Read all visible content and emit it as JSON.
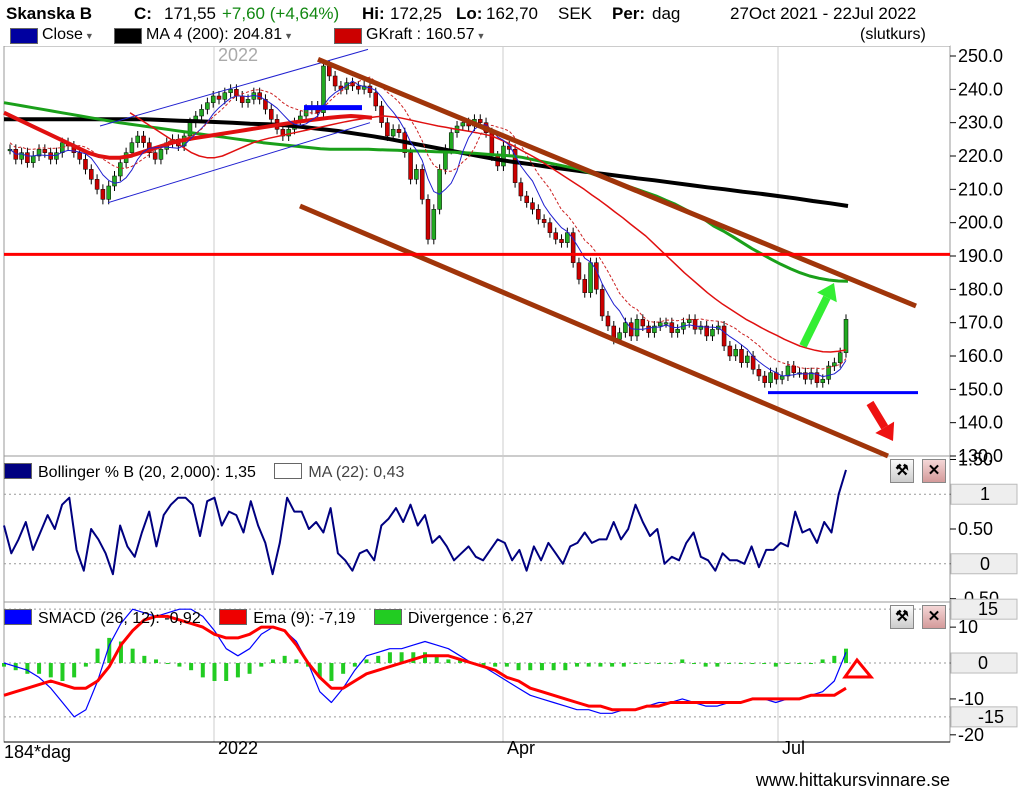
{
  "header": {
    "ticker": "Skanska B",
    "close_label": "C:",
    "close_value": "171,55",
    "change": "+7,60 (+4,64%)",
    "high_label": "Hi:",
    "high_value": "172,25",
    "low_label": "Lo:",
    "low_value": "162,70",
    "currency": "SEK",
    "period_label": "Per:",
    "period_value": "dag",
    "date_range": "27Oct 2021 - 22Jul 2022",
    "price_type": "(slutkurs)",
    "legend_close": "Close",
    "legend_ma": "MA 4 (200): 204.81",
    "legend_gkraft": "GKraft : 160.57"
  },
  "colors": {
    "up": "#22aa22",
    "down": "#cc0000",
    "ma200": "#000000",
    "green_ma": "#1aa01a",
    "red_ma": "#e01010",
    "blue_ma": "#2020d0",
    "trend": "#a0350a",
    "resistance": "#ff0000",
    "support": "#0000ff",
    "arrow_up": "#33ee33",
    "arrow_down": "#ee1111",
    "bollinger": "#000080",
    "smacd": "#0000ff",
    "ema": "#ff0000",
    "divergence": "#22cc22"
  },
  "chart_data": [
    {
      "type": "candlestick",
      "yticks": [
        "250.0",
        "240.0",
        "230.0",
        "220.0",
        "210.0",
        "200.0",
        "190.0",
        "180.0",
        "170.0",
        "160.0",
        "150.0",
        "140.0",
        "130.0"
      ],
      "ylim": [
        130,
        253
      ],
      "year_watermark": "2022",
      "xlabels": [
        "2022",
        "Apr",
        "Jul"
      ],
      "close": [
        222,
        219,
        221,
        218,
        220,
        222,
        221,
        219,
        221,
        224,
        223,
        221,
        219,
        216,
        213,
        210,
        207,
        211,
        214,
        218,
        221,
        224,
        226,
        224,
        221,
        219,
        222,
        224,
        225,
        223,
        226,
        230,
        232,
        234,
        236,
        238,
        237,
        239,
        240,
        238,
        236,
        237,
        239,
        237,
        234,
        231,
        228,
        226,
        228,
        230,
        232,
        234,
        235,
        233,
        247,
        244,
        241,
        240,
        242,
        241,
        240,
        241,
        239,
        235,
        230,
        226,
        228,
        227,
        221,
        213,
        216,
        207,
        195,
        204,
        216,
        222,
        227,
        229,
        230,
        229,
        231,
        230,
        227,
        220,
        217,
        223,
        222,
        212,
        208,
        206,
        204,
        201,
        200,
        197,
        195,
        194,
        197,
        188,
        183,
        179,
        188,
        180,
        172,
        169,
        165,
        167,
        170,
        166,
        171,
        169,
        167,
        169,
        170,
        170,
        167,
        168,
        170,
        171,
        168,
        169,
        166,
        168,
        169,
        163,
        160,
        162,
        158,
        160,
        156,
        154,
        152,
        155,
        153,
        154,
        157,
        155,
        155,
        153,
        155,
        152,
        153,
        157,
        158,
        161,
        171
      ],
      "ma200": [
        231,
        231,
        231,
        231,
        231,
        231,
        231,
        231,
        231,
        230.8,
        230.6,
        230.4,
        230.2,
        230,
        229.7,
        229.5,
        229.2,
        228.7,
        228.1,
        227.5,
        226.7,
        225.9,
        225,
        224,
        223,
        222,
        221,
        220,
        219,
        218.2,
        217.5,
        216.7,
        216,
        215.3,
        214.7,
        214,
        213.3,
        212.7,
        212,
        211.3,
        210.6,
        210,
        209.3,
        208.7,
        208,
        207.3,
        206.5,
        205.8,
        205
      ],
      "ma_green": [
        236,
        235.5,
        235,
        234.5,
        234,
        233.5,
        233,
        232.5,
        232,
        231.5,
        231,
        230.5,
        230,
        229.6,
        229.2,
        228.8,
        228.4,
        228,
        227.6,
        227.2,
        226.8,
        226.4,
        226,
        225.6,
        225.2,
        224.8,
        224.4,
        224,
        223.7,
        223.4,
        223.1,
        222.8,
        222.5,
        222.2,
        222,
        222,
        222,
        222,
        222,
        221.9,
        221.8,
        221.7,
        221.6,
        221.5,
        221.4,
        221.3,
        221.2,
        221.1,
        221,
        220.8,
        220.6,
        220.4,
        220.2,
        220,
        219.6,
        219,
        218.4,
        217.8,
        217.2,
        216.6,
        216,
        215,
        214,
        213,
        212,
        211,
        210,
        209,
        208,
        206.7,
        205.5,
        204,
        202.5,
        201,
        199,
        197.5,
        195.8,
        194,
        192.2,
        190.6,
        189,
        187.5,
        186.2,
        185,
        184,
        183.3,
        182.8,
        182.5,
        182.4
      ],
      "ma_red": [
        233,
        231.5,
        230,
        228.5,
        227,
        225.5,
        224,
        222.5,
        221,
        220,
        219.5,
        219.5,
        220,
        221,
        222,
        223,
        224,
        224.7,
        225.3,
        225.8,
        226.3,
        226.8,
        227.3,
        227.8,
        228.3,
        228.8,
        229.3,
        229.8,
        230.3,
        230.7,
        231.1,
        231.5,
        231.8,
        232,
        231.8,
        231.5,
        231,
        230.5,
        230,
        229.5,
        229,
        228.6,
        228.2,
        227.8,
        227.4,
        227,
        226.5,
        226,
        225,
        224,
        222.8,
        221.5,
        220.3,
        219,
        217.5,
        216,
        214.5,
        213,
        211.5,
        210,
        208.3,
        206.7,
        205,
        203.2,
        201.5,
        199.6,
        197.8,
        196,
        193.8,
        191.6,
        189.4,
        187.2,
        185,
        183,
        181,
        179,
        177.2,
        175.5,
        174,
        172.5,
        171,
        169.8,
        168.5,
        167.3,
        166.2,
        165,
        164,
        163,
        162.3,
        161.7,
        161.3,
        161.2,
        161.4,
        161.8
      ],
      "trend_lines": {
        "upper_start": 249,
        "upper_end": 175,
        "lower_start": 205,
        "lower_end": 130,
        "channel_low": 206,
        "channel_high": 230
      },
      "resistance": 190.5,
      "support": 149,
      "prior_support": 234.5
    },
    {
      "type": "line",
      "yticks": [
        "1.50",
        "1",
        "0.50",
        "0",
        "-0.50"
      ],
      "ylim": [
        -0.55,
        1.55
      ],
      "values": [
        0.55,
        0.15,
        0.35,
        0.6,
        0.2,
        0.45,
        0.7,
        0.5,
        0.85,
        0.95,
        0.2,
        -0.1,
        0.5,
        0.35,
        0.15,
        -0.15,
        0.55,
        0.25,
        0.1,
        0.45,
        0.75,
        0.25,
        0.7,
        0.85,
        0.95,
        0.95,
        0.85,
        0.4,
        0.9,
        0.95,
        0.55,
        0.75,
        0.7,
        0.45,
        0.9,
        0.55,
        0.3,
        -0.15,
        0.3,
        0.95,
        0.75,
        0.75,
        0.5,
        0.6,
        0.45,
        0.8,
        0.15,
        0.05,
        -0.1,
        0.15,
        0.2,
        0.05,
        0.55,
        0.65,
        0.8,
        0.6,
        0.85,
        0.55,
        0.7,
        0.3,
        0.4,
        0.25,
        0.05,
        0.15,
        0.25,
        0.1,
        0.05,
        0.2,
        0.35,
        0.3,
        0.05,
        0.2,
        -0.1,
        0.25,
        0.05,
        0.3,
        0.15,
        0.0,
        0.25,
        0.3,
        0.45,
        0.3,
        0.35,
        0.35,
        0.6,
        0.35,
        0.5,
        0.85,
        0.6,
        0.4,
        0.5,
        0.0,
        0.1,
        0.05,
        0.3,
        0.45,
        0.1,
        0.05,
        -0.1,
        0.15,
        0.05,
        0.05,
        0.0,
        0.25,
        -0.05,
        0.2,
        0.2,
        0.3,
        0.25,
        0.75,
        0.45,
        0.5,
        0.3,
        0.6,
        0.45,
        1.0,
        1.35
      ],
      "legend_main": "Bollinger % B (20, 2,000): 1,35",
      "legend_ma": "MA (22): 0,43",
      "right_markers": [
        "1",
        "0"
      ]
    },
    {
      "type": "bar_line",
      "yticks": [
        "10",
        "0",
        "-10",
        "-20"
      ],
      "ylim": [
        -22,
        17
      ],
      "smacd": [
        0,
        -1,
        -2,
        -4,
        -7,
        -11,
        -15,
        -13,
        -5,
        5,
        11,
        15,
        14,
        13,
        14,
        15,
        15,
        13,
        9,
        4,
        2,
        4,
        8,
        10,
        9,
        6,
        0,
        -8,
        -11,
        -7,
        -2,
        2,
        3,
        4,
        4,
        5,
        6,
        5,
        4,
        2,
        0,
        -1,
        -3,
        -5,
        -7,
        -9,
        -10,
        -11,
        -12,
        -13,
        -13,
        -14,
        -14,
        -13,
        -13,
        -12,
        -11,
        -11,
        -10,
        -11,
        -12,
        -12,
        -11,
        -11,
        -10,
        -10,
        -11,
        -10,
        -10,
        -9,
        -8,
        -5,
        3
      ],
      "ema": [
        -9,
        -8,
        -7,
        -6,
        -5,
        -6,
        -7,
        -7,
        -5,
        -1,
        5,
        9,
        12,
        13,
        13,
        12,
        11,
        10,
        8,
        7,
        7,
        8,
        10,
        10,
        9,
        5,
        0,
        -4,
        -7,
        -7,
        -5,
        -3,
        -2,
        -1,
        0,
        1,
        2,
        2,
        2,
        1,
        0,
        -1,
        -2,
        -4,
        -5,
        -7,
        -8,
        -9,
        -10,
        -11,
        -12,
        -12,
        -13,
        -13,
        -13,
        -12,
        -12,
        -11,
        -11,
        -11,
        -11,
        -11,
        -11,
        -11,
        -10,
        -10,
        -10,
        -10,
        -10,
        -9,
        -9,
        -9,
        -7
      ],
      "divergence": [
        -1,
        -2,
        -3,
        -3,
        -4,
        -5,
        -4,
        -1,
        4,
        7,
        6,
        4,
        2,
        1,
        0,
        -1,
        -2,
        -4,
        -5,
        -5,
        -4,
        -3,
        -1,
        1,
        2,
        1,
        -1,
        -4,
        -5,
        -3,
        -1,
        1,
        2,
        3,
        3,
        3,
        3,
        2,
        1,
        1,
        0,
        -1,
        -1,
        -1,
        -2,
        -2,
        -2,
        -2,
        -2,
        -1,
        -1,
        -1,
        -1,
        -1,
        0,
        0,
        0,
        0,
        1,
        0,
        -1,
        -1,
        0,
        0,
        0,
        0,
        -1,
        0,
        0,
        0,
        1,
        2,
        4
      ],
      "legend_smacd": "SMACD (26, 12): -0,92",
      "legend_ema": "Ema (9): -7,19",
      "legend_div": "Divergence : 6,27",
      "right_markers": [
        "15",
        "0",
        "-15"
      ]
    }
  ],
  "footer": {
    "days": "184*dag",
    "source": "www.hittakursvinnare.se"
  }
}
